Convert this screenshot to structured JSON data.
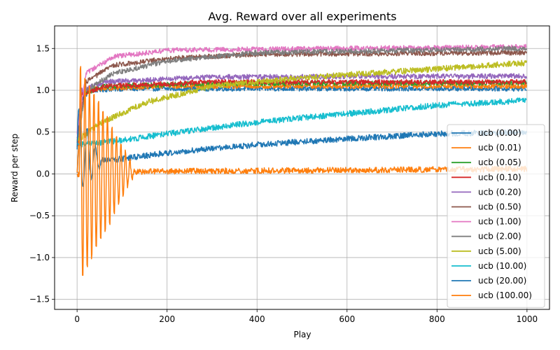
{
  "chart_data": {
    "type": "line",
    "title": "Avg. Reward over all experiments",
    "xlabel": "Play",
    "ylabel": "Reward per step",
    "xlim": [
      -50,
      1050
    ],
    "ylim": [
      -1.62,
      1.77
    ],
    "xticks": [
      0,
      200,
      400,
      600,
      800,
      1000
    ],
    "xtick_labels": [
      "0",
      "200",
      "400",
      "600",
      "800",
      "1000"
    ],
    "yticks": [
      -1.5,
      -1.0,
      -0.5,
      0.0,
      0.5,
      1.0,
      1.5
    ],
    "ytick_labels": [
      "−1.5",
      "−1.0",
      "−0.5",
      "0.0",
      "0.5",
      "1.0",
      "1.5"
    ],
    "grid": true,
    "legend_position": "right",
    "n_points": 1000,
    "series": [
      {
        "name": "ucb (0.00)",
        "color": "#1f77b4",
        "anchors": [
          [
            0,
            0.0
          ],
          [
            10,
            0.9
          ],
          [
            30,
            1.0
          ],
          [
            100,
            1.02
          ],
          [
            1000,
            1.02
          ]
        ],
        "noise": 0.03,
        "oscillation": null
      },
      {
        "name": "ucb (0.01)",
        "color": "#ff7f0e",
        "anchors": [
          [
            0,
            0.0
          ],
          [
            10,
            0.95
          ],
          [
            40,
            1.02
          ],
          [
            200,
            1.05
          ],
          [
            1000,
            1.05
          ]
        ],
        "noise": 0.03,
        "oscillation": null
      },
      {
        "name": "ucb (0.05)",
        "color": "#2ca02c",
        "anchors": [
          [
            0,
            0.3
          ],
          [
            10,
            0.95
          ],
          [
            60,
            1.05
          ],
          [
            300,
            1.08
          ],
          [
            1000,
            1.09
          ]
        ],
        "noise": 0.03,
        "oscillation": null
      },
      {
        "name": "ucb (0.10)",
        "color": "#d62728",
        "anchors": [
          [
            0,
            0.3
          ],
          [
            10,
            0.95
          ],
          [
            60,
            1.05
          ],
          [
            300,
            1.1
          ],
          [
            1000,
            1.1
          ]
        ],
        "noise": 0.03,
        "oscillation": null
      },
      {
        "name": "ucb (0.20)",
        "color": "#9467bd",
        "anchors": [
          [
            0,
            0.4
          ],
          [
            10,
            1.0
          ],
          [
            60,
            1.1
          ],
          [
            300,
            1.16
          ],
          [
            1000,
            1.17
          ]
        ],
        "noise": 0.03,
        "oscillation": null
      },
      {
        "name": "ucb (0.50)",
        "color": "#8c564b",
        "anchors": [
          [
            0,
            0.4
          ],
          [
            20,
            1.1
          ],
          [
            80,
            1.3
          ],
          [
            200,
            1.38
          ],
          [
            400,
            1.43
          ],
          [
            1000,
            1.45
          ]
        ],
        "noise": 0.03,
        "oscillation": null
      },
      {
        "name": "ucb (1.00)",
        "color": "#e377c2",
        "anchors": [
          [
            0,
            0.5
          ],
          [
            20,
            1.2
          ],
          [
            80,
            1.4
          ],
          [
            200,
            1.48
          ],
          [
            1000,
            1.52
          ]
        ],
        "noise": 0.03,
        "oscillation": null
      },
      {
        "name": "ucb (2.00)",
        "color": "#7f7f7f",
        "anchors": [
          [
            0,
            0.4
          ],
          [
            20,
            1.0
          ],
          [
            80,
            1.2
          ],
          [
            200,
            1.35
          ],
          [
            400,
            1.45
          ],
          [
            1000,
            1.5
          ]
        ],
        "noise": 0.03,
        "oscillation": null
      },
      {
        "name": "ucb (5.00)",
        "color": "#bcbd22",
        "anchors": [
          [
            0,
            0.4
          ],
          [
            50,
            0.6
          ],
          [
            150,
            0.85
          ],
          [
            300,
            1.05
          ],
          [
            500,
            1.15
          ],
          [
            700,
            1.22
          ],
          [
            1000,
            1.33
          ]
        ],
        "noise": 0.035,
        "oscillation": null
      },
      {
        "name": "ucb (10.00)",
        "color": "#17becf",
        "anchors": [
          [
            0,
            0.35
          ],
          [
            100,
            0.4
          ],
          [
            200,
            0.48
          ],
          [
            400,
            0.62
          ],
          [
            600,
            0.72
          ],
          [
            800,
            0.82
          ],
          [
            1000,
            0.88
          ]
        ],
        "noise": 0.035,
        "oscillation": null
      },
      {
        "name": "ucb (20.00)",
        "color": "#1f77b4",
        "anchors": [
          [
            0,
            0.3
          ],
          [
            40,
            0.15
          ],
          [
            100,
            0.18
          ],
          [
            200,
            0.25
          ],
          [
            400,
            0.35
          ],
          [
            600,
            0.42
          ],
          [
            800,
            0.48
          ],
          [
            1000,
            0.5
          ]
        ],
        "noise": 0.035,
        "oscillation": {
          "start": 0,
          "end": 60,
          "amplitude": 0.55,
          "period": 18
        }
      },
      {
        "name": "ucb (100.00)",
        "color": "#ff7f0e",
        "anchors": [
          [
            0,
            0.0
          ],
          [
            150,
            0.03
          ],
          [
            1000,
            0.06
          ]
        ],
        "noise": 0.035,
        "oscillation": {
          "start": 5,
          "end": 130,
          "amplitude": 1.35,
          "period": 10
        }
      }
    ]
  }
}
